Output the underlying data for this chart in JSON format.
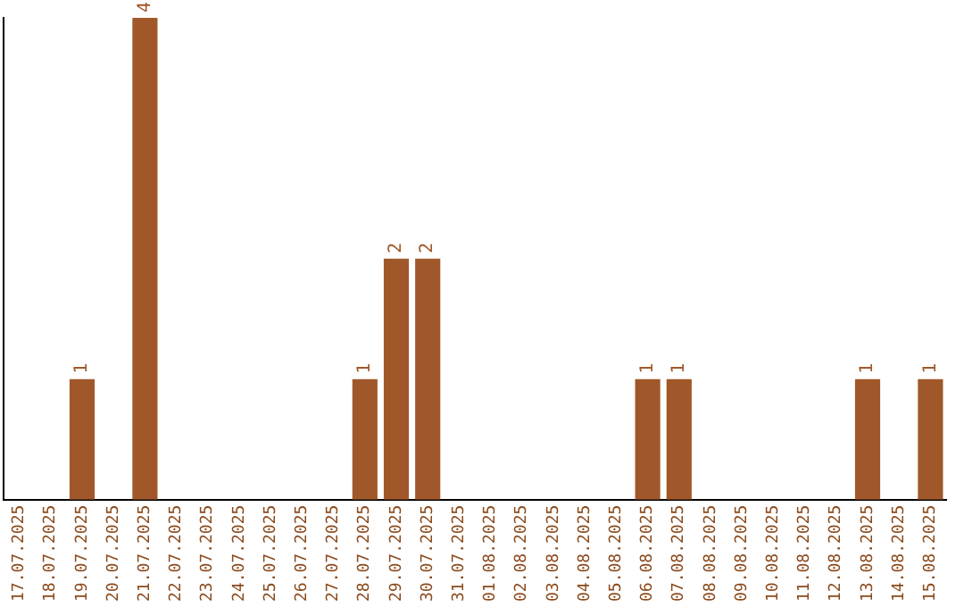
{
  "chart_data": {
    "type": "bar",
    "categories": [
      "17.07.2025",
      "18.07.2025",
      "19.07.2025",
      "20.07.2025",
      "21.07.2025",
      "22.07.2025",
      "23.07.2025",
      "24.07.2025",
      "25.07.2025",
      "26.07.2025",
      "27.07.2025",
      "28.07.2025",
      "29.07.2025",
      "30.07.2025",
      "31.07.2025",
      "01.08.2025",
      "02.08.2025",
      "03.08.2025",
      "04.08.2025",
      "05.08.2025",
      "06.08.2025",
      "07.08.2025",
      "08.08.2025",
      "09.08.2025",
      "10.08.2025",
      "11.08.2025",
      "12.08.2025",
      "13.08.2025",
      "14.08.2025",
      "15.08.2025"
    ],
    "values": [
      0,
      0,
      1,
      0,
      4,
      0,
      0,
      0,
      0,
      0,
      0,
      1,
      2,
      2,
      0,
      0,
      0,
      0,
      0,
      0,
      1,
      1,
      0,
      0,
      0,
      0,
      0,
      1,
      0,
      1
    ],
    "value_labels": [
      null,
      null,
      "1",
      null,
      "4",
      null,
      null,
      null,
      null,
      null,
      null,
      "1",
      "2",
      "2",
      null,
      null,
      null,
      null,
      null,
      null,
      "1",
      "1",
      null,
      null,
      null,
      null,
      null,
      "1",
      null,
      "1"
    ],
    "color": "#a0582a",
    "grid": false,
    "tick_labels": "x",
    "legend": false
  }
}
